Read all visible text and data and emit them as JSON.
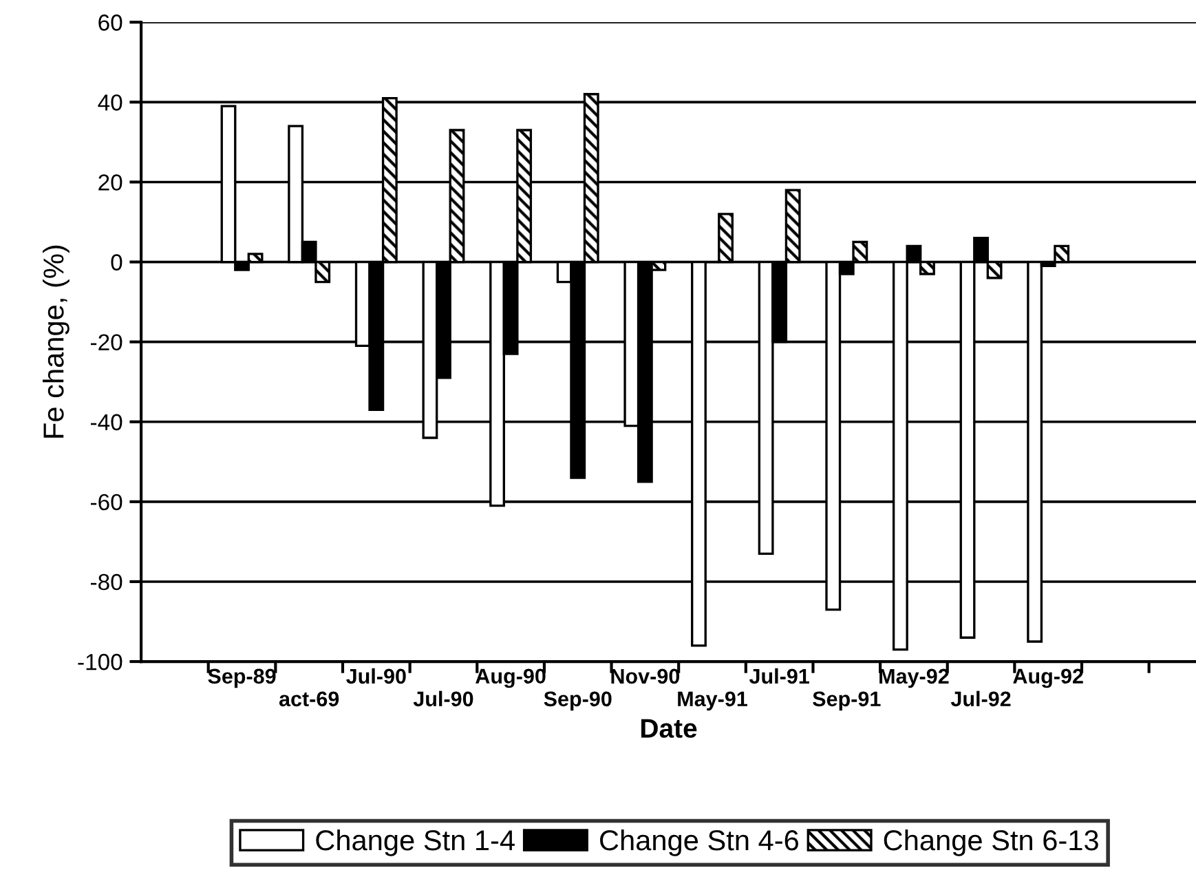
{
  "chart_data": {
    "type": "bar",
    "xlabel": "Date",
    "ylabel": "Fe change, (%)",
    "categories": [
      null,
      "Sep-89",
      "act-69",
      "Jul-90",
      "Jul-90",
      "Aug-90",
      "Sep-90",
      "Nov-90",
      "May-91",
      "Jul-91",
      "Sep-91",
      "May-92",
      "Jul-92",
      "Aug-92",
      null,
      null
    ],
    "series": [
      {
        "name": "Change Stn 1-4",
        "color": "#ffffff",
        "values": [
          null,
          39,
          34,
          -21,
          -44,
          -61,
          -5,
          -41,
          -96,
          -73,
          -87,
          -97,
          -94,
          -95,
          null,
          null
        ]
      },
      {
        "name": "Change Stn 4-6",
        "color": "#000000",
        "values": [
          null,
          -2,
          5,
          -37,
          -29,
          -23,
          -54,
          -55,
          0,
          -20,
          -3,
          4,
          6,
          -1,
          null,
          null
        ]
      },
      {
        "name": "Change Stn 6-13",
        "color": "#000000",
        "values": [
          null,
          2,
          -5,
          41,
          33,
          33,
          42,
          -2,
          12,
          18,
          5,
          -3,
          -4,
          4,
          null,
          null
        ]
      }
    ],
    "ylim": [
      -100,
      60
    ],
    "yticks": [
      -100,
      -80,
      -60,
      -40,
      -20,
      0,
      20,
      40,
      60
    ],
    "grid": "y",
    "legend": "bottom"
  }
}
